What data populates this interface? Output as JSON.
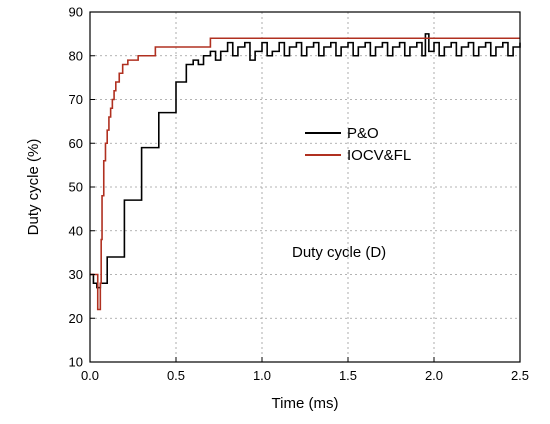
{
  "chart_data": {
    "type": "line",
    "xlabel": "Time (ms)",
    "ylabel": "Duty cycle (%)",
    "xlim": [
      0,
      2.5
    ],
    "ylim": [
      10,
      90
    ],
    "x_ticks": [
      0.0,
      0.5,
      1.0,
      1.5,
      2.0,
      2.5
    ],
    "x_tick_labels": [
      "0.0",
      "0.5",
      "1.0",
      "1.5",
      "2.0",
      "2.5"
    ],
    "y_ticks": [
      10,
      20,
      30,
      40,
      50,
      60,
      70,
      80,
      90
    ],
    "y_tick_labels": [
      "10",
      "20",
      "30",
      "40",
      "50",
      "60",
      "70",
      "80",
      "90"
    ],
    "grid": true,
    "legend_position": "center-right",
    "annotation": "Duty cycle (D)",
    "series": [
      {
        "name": "P&O",
        "color": "#000000",
        "x": [
          0.0,
          0.02,
          0.04,
          0.06,
          0.1,
          0.2,
          0.3,
          0.4,
          0.5,
          0.56,
          0.6,
          0.63,
          0.66,
          0.7,
          0.73,
          0.76,
          0.8,
          0.83,
          0.86,
          0.9,
          0.93,
          0.96,
          1.0,
          1.03,
          1.06,
          1.1,
          1.13,
          1.16,
          1.2,
          1.23,
          1.26,
          1.3,
          1.33,
          1.36,
          1.4,
          1.43,
          1.46,
          1.5,
          1.53,
          1.56,
          1.6,
          1.63,
          1.66,
          1.7,
          1.73,
          1.76,
          1.8,
          1.83,
          1.86,
          1.9,
          1.93,
          1.95,
          1.97,
          2.0,
          2.03,
          2.06,
          2.1,
          2.13,
          2.16,
          2.2,
          2.23,
          2.26,
          2.3,
          2.33,
          2.36,
          2.4,
          2.43,
          2.46,
          2.5
        ],
        "y": [
          30,
          28,
          27,
          28,
          34,
          47,
          59,
          67,
          74,
          78,
          79,
          78,
          80,
          81,
          79,
          81,
          83,
          80,
          82,
          83,
          79,
          81,
          83,
          80,
          81,
          83,
          80,
          82,
          83,
          80,
          82,
          83,
          80,
          82,
          83,
          80,
          82,
          83,
          80,
          82,
          83,
          80,
          82,
          83,
          80,
          82,
          83,
          80,
          82,
          83,
          80,
          85,
          81,
          83,
          80,
          82,
          83,
          80,
          82,
          83,
          80,
          82,
          83,
          80,
          82,
          83,
          80,
          82,
          83
        ]
      },
      {
        "name": "IOCV&FL",
        "color": "#b03020",
        "x": [
          0.0,
          0.03,
          0.045,
          0.05,
          0.06,
          0.065,
          0.07,
          0.08,
          0.09,
          0.1,
          0.11,
          0.12,
          0.13,
          0.14,
          0.15,
          0.17,
          0.19,
          0.22,
          0.28,
          0.38,
          0.5,
          0.7,
          1.0,
          1.5,
          2.0,
          2.5
        ],
        "y": [
          30,
          30,
          22,
          22,
          28,
          38,
          48,
          56,
          60,
          63,
          66,
          68,
          70,
          72,
          74,
          76,
          78,
          79,
          80,
          82,
          82,
          84,
          84,
          84,
          84,
          84
        ]
      }
    ]
  }
}
